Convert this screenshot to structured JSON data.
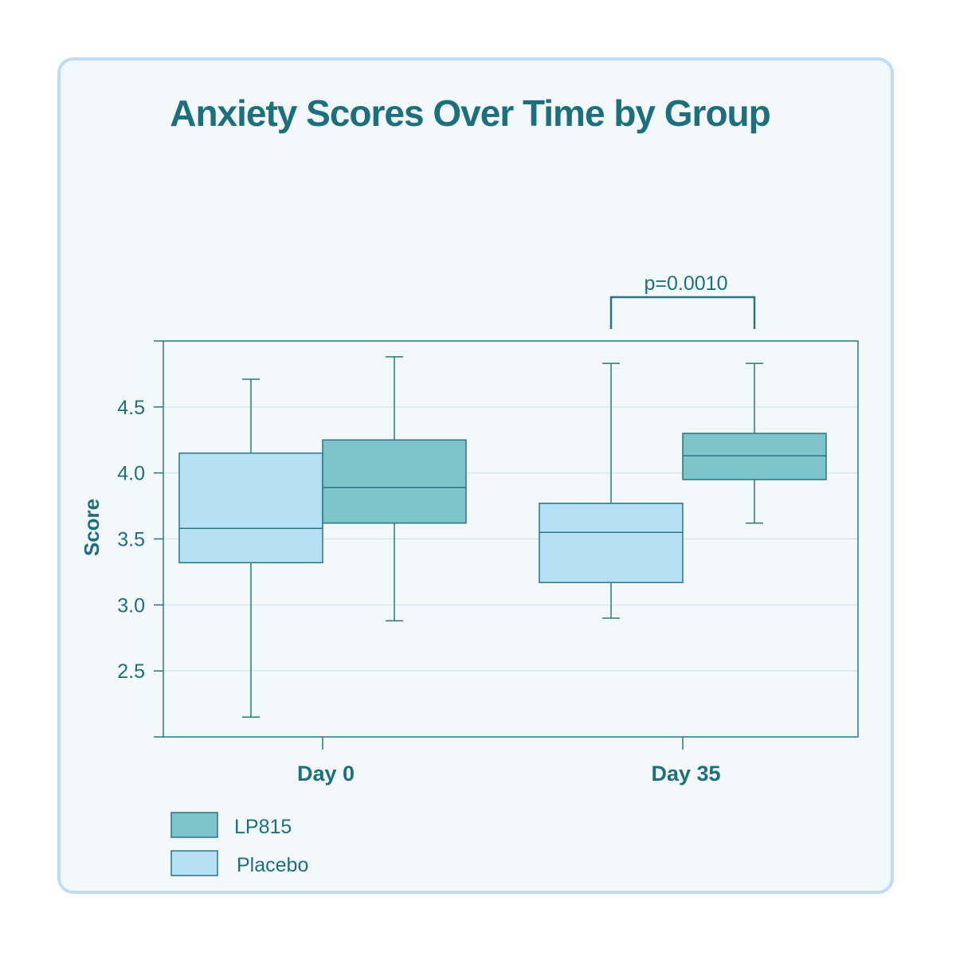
{
  "chart_data": {
    "type": "box",
    "title": "Anxiety Scores Over Time by Group",
    "xlabel": "",
    "ylabel": "Score",
    "categories": [
      "Day 0",
      "Day 35"
    ],
    "ylim": [
      2.0,
      5.0
    ],
    "yticks": [
      2.5,
      3.0,
      3.5,
      4.0,
      4.5
    ],
    "grid": true,
    "legend_position": "bottom-left",
    "series": [
      {
        "name": "LP815",
        "color": "#80c4cb",
        "stats": [
          {
            "min": 2.88,
            "q1": 3.62,
            "median": 3.89,
            "q3": 4.25,
            "max": 4.88
          },
          {
            "min": 3.62,
            "q1": 3.95,
            "median": 4.13,
            "q3": 4.3,
            "max": 4.83
          }
        ]
      },
      {
        "name": "Placebo",
        "color": "#b6e1f5",
        "stats": [
          {
            "min": 2.15,
            "q1": 3.32,
            "median": 3.58,
            "q3": 4.15,
            "max": 4.71
          },
          {
            "min": 2.9,
            "q1": 3.17,
            "median": 3.55,
            "q3": 3.77,
            "max": 4.83
          }
        ]
      }
    ],
    "annotations": [
      {
        "text": "p=0.0010",
        "category": "Day 35",
        "between": [
          "Placebo",
          "LP815"
        ]
      }
    ]
  }
}
